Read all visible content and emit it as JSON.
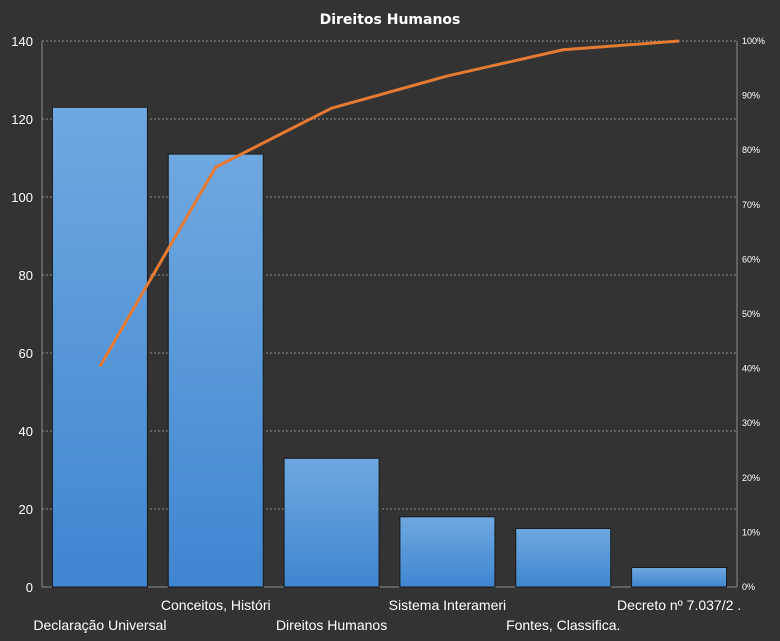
{
  "chart_data": {
    "type": "bar",
    "title": "Direitos  Humanos",
    "categories": [
      "Declaração Universal",
      "Conceitos, Históri",
      "Direitos Humanos",
      "Sistema Interameri",
      "Fontes, Classifica.",
      "Decreto nº 7.037/2 ."
    ],
    "series": [
      {
        "type": "bar",
        "values": [
          123,
          111,
          33,
          18,
          15,
          5
        ]
      },
      {
        "type": "line",
        "axis": "secondary",
        "values": [
          40.4,
          76.9,
          87.7,
          93.6,
          98.4,
          100
        ]
      }
    ],
    "y_axis": {
      "min": 0,
      "max": 140,
      "step": 20,
      "ticks": [
        "0",
        "20",
        "40",
        "60",
        "80",
        "100",
        "120",
        "140"
      ]
    },
    "y2_axis": {
      "min": 0,
      "max": 100,
      "step": 10,
      "ticks": [
        "0%",
        "10%",
        "20%",
        "30%",
        "40%",
        "50%",
        "60%",
        "70%",
        "80%",
        "90%",
        "100%"
      ]
    },
    "grid": true,
    "colors": {
      "background": "#333333",
      "bar": "#4a90d9",
      "bar_light": "#6fa8e0",
      "line": "#e57a33",
      "text": "#ffffff",
      "grid": "#8c8c8c"
    }
  }
}
